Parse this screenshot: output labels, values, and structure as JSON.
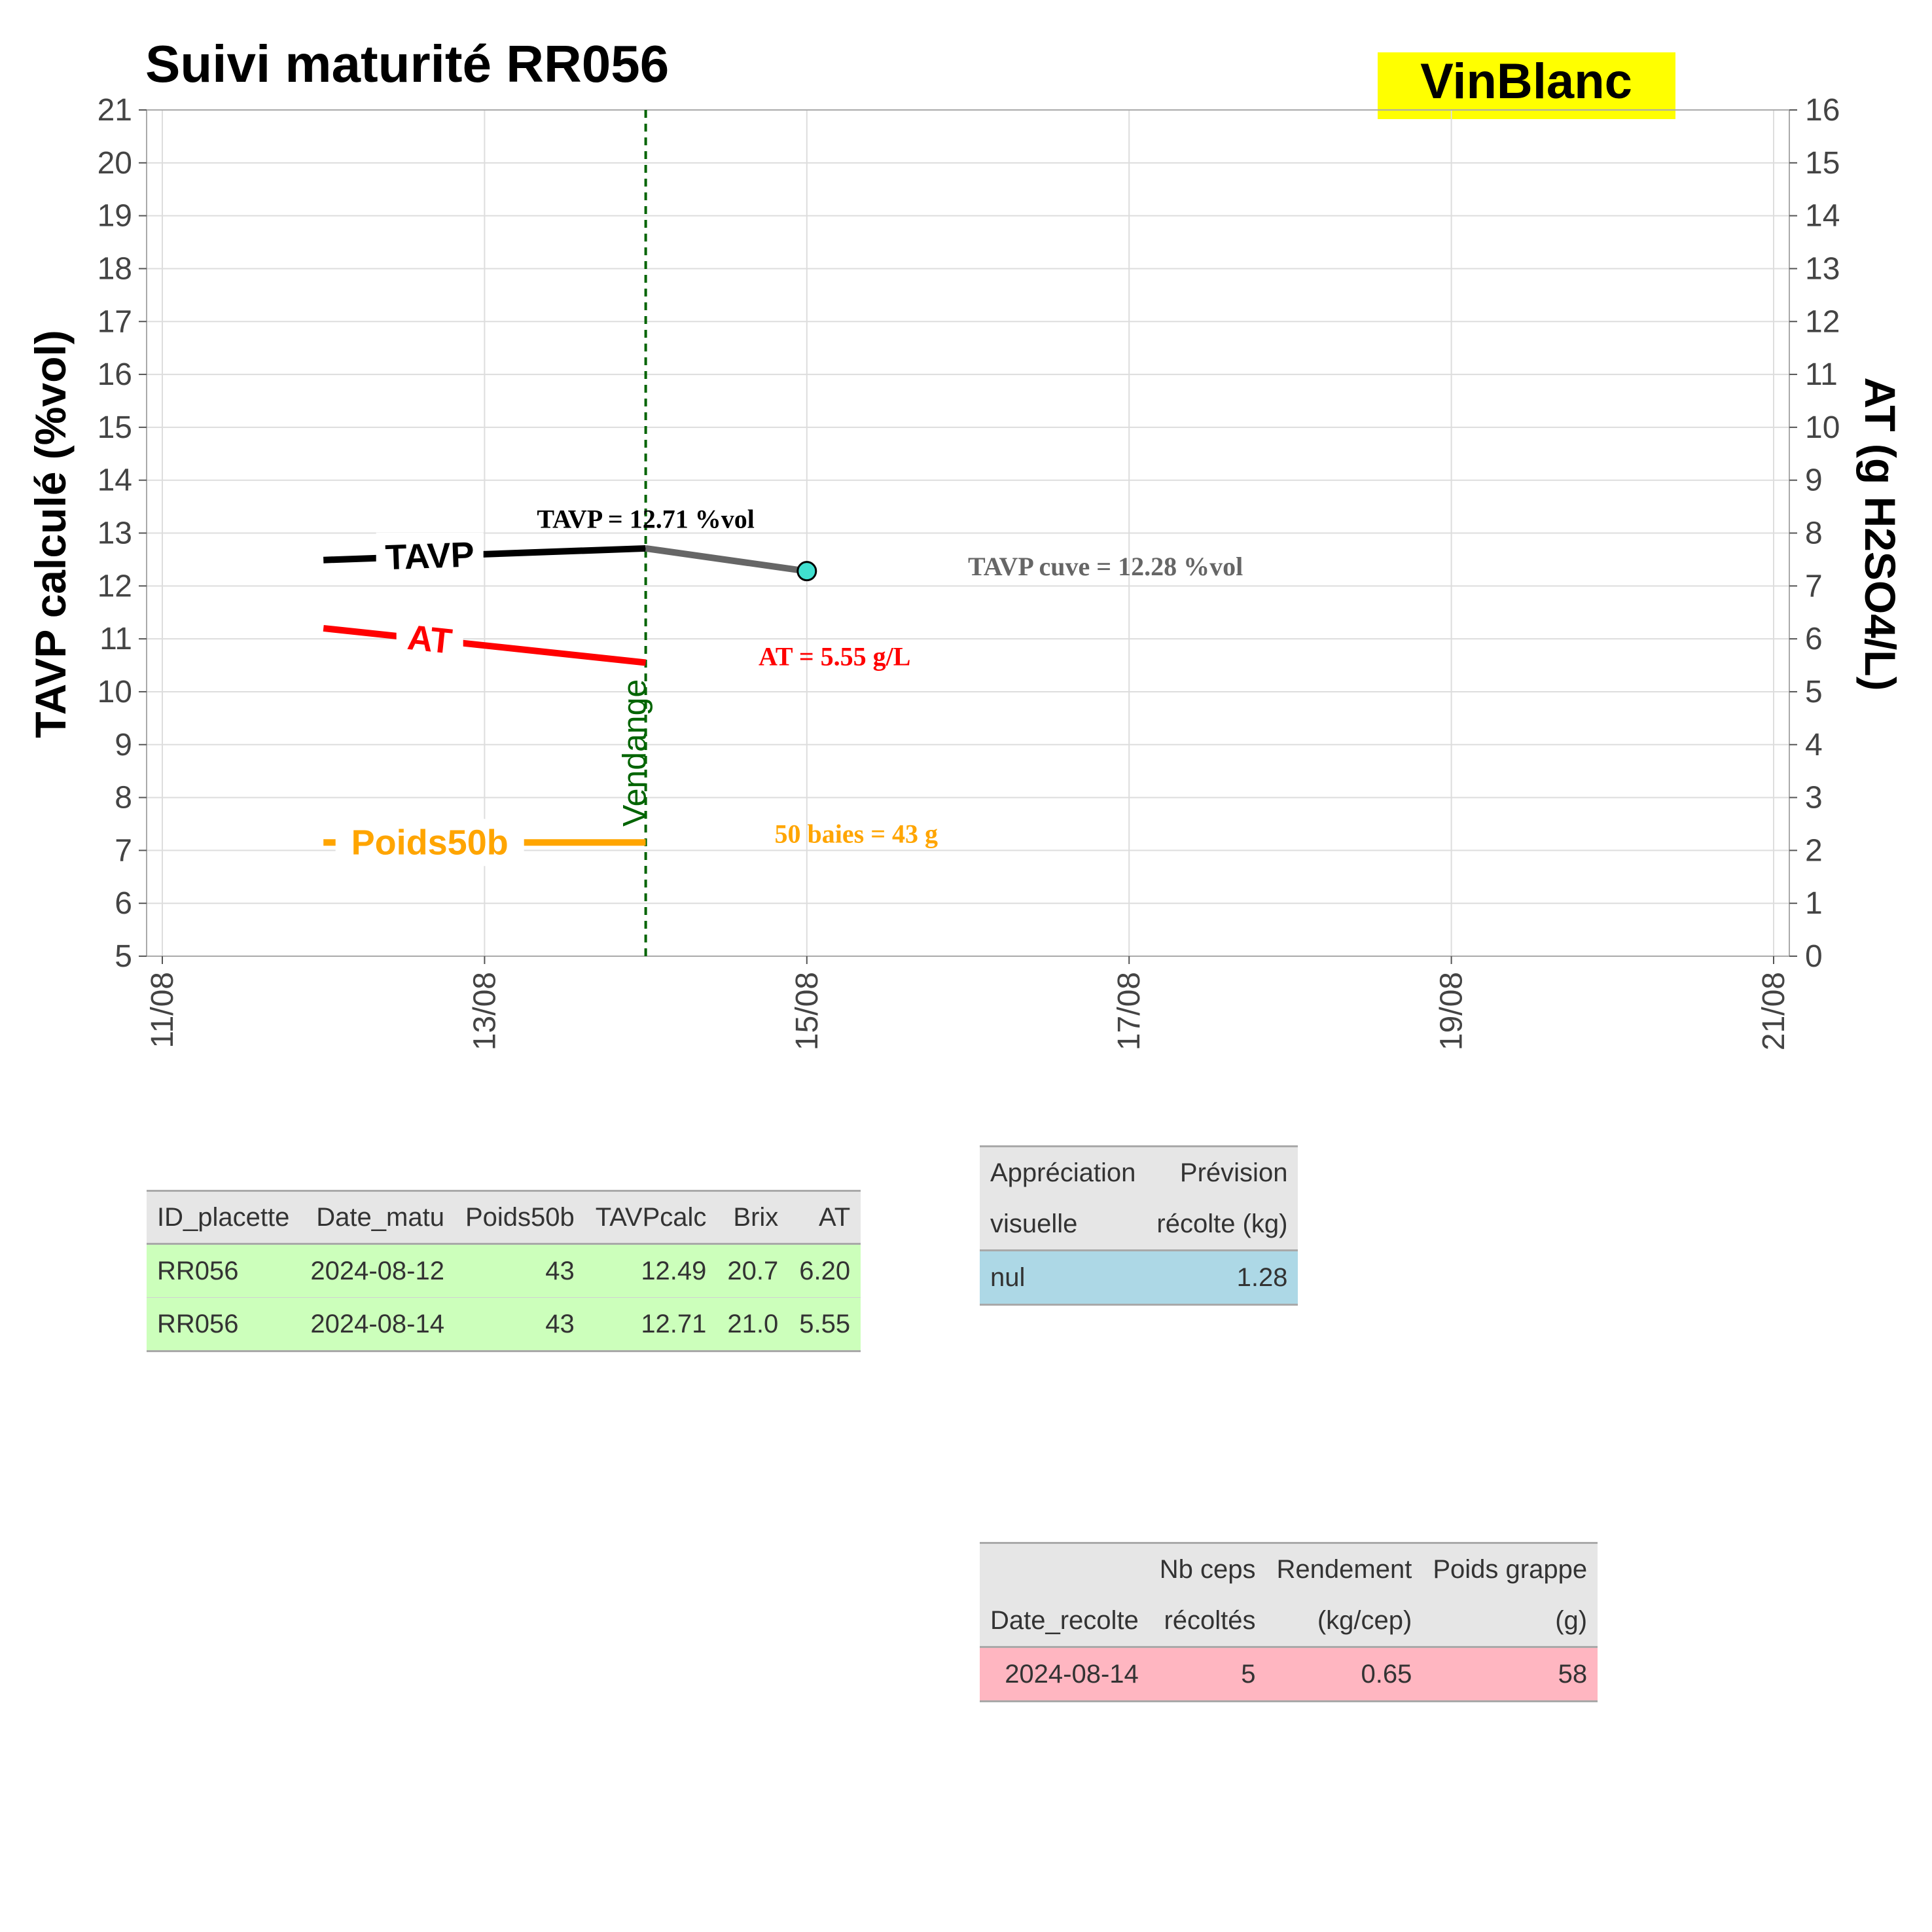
{
  "chart_data": {
    "type": "line",
    "title": "Suivi maturité  RR056",
    "badge": {
      "text": "VinBlanc",
      "color": "#ffff00"
    },
    "ylabel_left": "TAVP calculé (%vol)",
    "ylabel_right": "AT (g H2SO4/L)",
    "ylim_left": [
      5,
      21
    ],
    "ylim_right": [
      0,
      16
    ],
    "yticks_left": [
      5,
      6,
      7,
      8,
      9,
      10,
      11,
      12,
      13,
      14,
      15,
      16,
      17,
      18,
      19,
      20,
      21
    ],
    "yticks_right": [
      0,
      1,
      2,
      3,
      4,
      5,
      6,
      7,
      8,
      9,
      10,
      11,
      12,
      13,
      14,
      15,
      16
    ],
    "xlim": [
      "2024-08-11",
      "2024-08-21"
    ],
    "xticks": [
      {
        "date": "2024-08-11",
        "label": "11/08"
      },
      {
        "date": "2024-08-13",
        "label": "13/08"
      },
      {
        "date": "2024-08-15",
        "label": "15/08"
      },
      {
        "date": "2024-08-17",
        "label": "17/08"
      },
      {
        "date": "2024-08-19",
        "label": "19/08"
      },
      {
        "date": "2024-08-21",
        "label": "21/08"
      }
    ],
    "grid": true,
    "series": [
      {
        "name": "TAVP",
        "axis": "left",
        "color": "#000000",
        "x": [
          "2024-08-12",
          "2024-08-14"
        ],
        "values": [
          12.49,
          12.71
        ]
      },
      {
        "name": "AT",
        "axis": "right",
        "color": "#ff0000",
        "x": [
          "2024-08-12",
          "2024-08-14"
        ],
        "values": [
          6.2,
          5.55
        ]
      },
      {
        "name": "Poids50b",
        "axis": "left",
        "color": "#ffa500",
        "x": [
          "2024-08-12",
          "2024-08-14"
        ],
        "values": [
          7.15,
          7.15
        ]
      }
    ],
    "cuve": {
      "color": "#666666",
      "marker_color": "#40e0d0",
      "x": [
        "2024-08-14",
        "2024-08-15"
      ],
      "values": [
        12.71,
        12.28
      ]
    },
    "vendange": {
      "date": "2024-08-14",
      "label": "Vendange",
      "color": "#006400"
    },
    "annotations": [
      {
        "text": "TAVP = 12.71 %vol",
        "color": "#000000",
        "x": "2024-08-14",
        "y": 13.1
      },
      {
        "text": "TAVP cuve = 12.28 %vol",
        "color": "#666666",
        "x": "2024-08-16",
        "y": 12.2
      },
      {
        "text": "AT = 5.55 g/L",
        "color": "#ff0000",
        "x": "2024-08-14.7",
        "y": 10.5
      },
      {
        "text": "50 baies = 43 g",
        "color": "#ffa500",
        "x": "2024-08-14.8",
        "y": 7.15
      }
    ]
  },
  "tables": {
    "matu": {
      "headers": [
        "ID_placette",
        "Date_matu",
        "Poids50b",
        "TAVPcalc",
        "Brix",
        "AT"
      ],
      "rows": [
        [
          "RR056",
          "2024-08-12",
          "43",
          "12.49",
          "20.7",
          "6.20"
        ],
        [
          "RR056",
          "2024-08-14",
          "43",
          "12.71",
          "21.0",
          "5.55"
        ]
      ],
      "row_color": "#ccffbb"
    },
    "visual": {
      "headers": [
        [
          "Appréciation",
          "visuelle"
        ],
        [
          "Prévision",
          "récolte (kg)"
        ]
      ],
      "rows": [
        [
          "nul",
          "1.28"
        ]
      ],
      "row_color": "#add8e6"
    },
    "recolte": {
      "headers": [
        [
          "",
          "Date_recolte"
        ],
        [
          "Nb ceps",
          "récoltés"
        ],
        [
          "Rendement",
          "(kg/cep)"
        ],
        [
          "Poids grappe",
          "(g)"
        ]
      ],
      "rows": [
        [
          "2024-08-14",
          "5",
          "0.65",
          "58"
        ]
      ],
      "row_color": "#ffb6c1"
    }
  }
}
